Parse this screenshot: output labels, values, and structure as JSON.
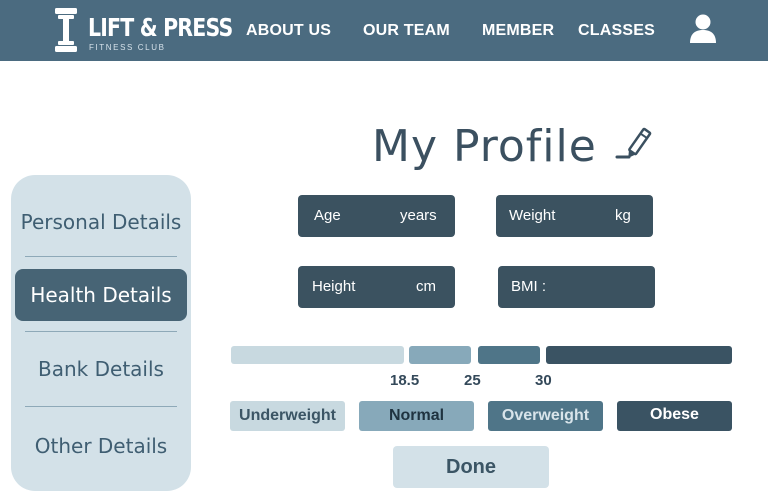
{
  "header": {
    "brand_name": "LIFT & PRESS",
    "brand_tagline": "FITNESS CLUB",
    "nav": [
      {
        "label": "ABOUT US"
      },
      {
        "label": "OUR TEAM"
      },
      {
        "label": "MEMBER"
      },
      {
        "label": "CLASSES"
      }
    ],
    "profile_icon": "user-icon"
  },
  "page": {
    "title": "My Profile",
    "edit_icon": "pencil-icon"
  },
  "sidebar": {
    "items": [
      {
        "label": "Personal Details"
      },
      {
        "label": "Health Details",
        "active": true
      },
      {
        "label": "Bank Details"
      },
      {
        "label": "Other Details"
      }
    ]
  },
  "fields": {
    "age": {
      "label": "Age",
      "unit": "years",
      "value": ""
    },
    "weight": {
      "label": "Weight",
      "unit": "kg",
      "value": ""
    },
    "height": {
      "label": "Height",
      "unit": "cm",
      "value": ""
    },
    "bmi": {
      "label": "BMI :",
      "value": ""
    }
  },
  "bmi_scale": {
    "ticks": [
      "18.5",
      "25",
      "30"
    ],
    "categories": [
      {
        "label": "Underweight",
        "color": "#c8d9e0"
      },
      {
        "label": "Normal",
        "color": "#87a9ba"
      },
      {
        "label": "Overweight",
        "color": "#4f7588"
      },
      {
        "label": "Obese",
        "color": "#3a5363"
      }
    ]
  },
  "actions": {
    "done_label": "Done"
  },
  "colors": {
    "header_bg": "#4b6b80",
    "sidebar_bg": "#d3e1e8",
    "active_item_bg": "#476475",
    "field_bg": "#3b5260",
    "title_text": "#3b5060"
  }
}
